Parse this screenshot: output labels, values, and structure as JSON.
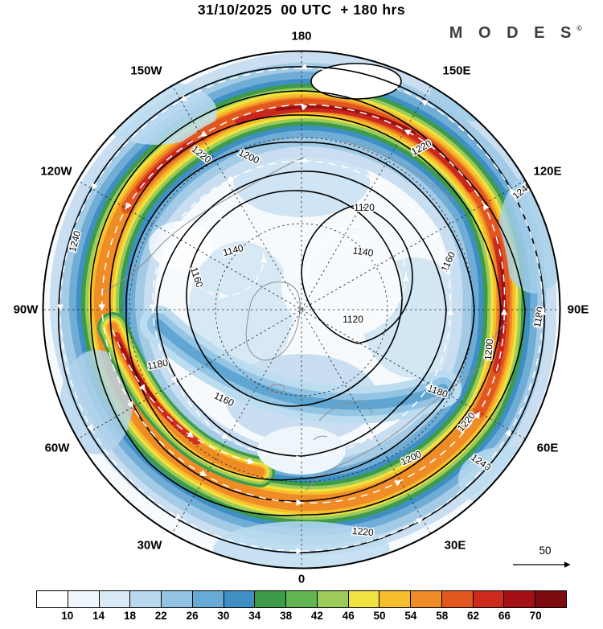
{
  "header": {
    "title": "31/10/2025  00 UTC  + 180 hrs",
    "brand": "M O D E S",
    "brand_mark": "©"
  },
  "map": {
    "lon_labels": [
      "180",
      "150W",
      "150E",
      "120W",
      "120E",
      "90W",
      "90E",
      "60W",
      "60E",
      "30W",
      "30E",
      "0"
    ],
    "contour_labels": [
      "1240",
      "1240",
      "1240",
      "1220",
      "1220",
      "1220",
      "1220",
      "1200",
      "1200",
      "1200",
      "1180",
      "1180",
      "1180",
      "1160",
      "1160",
      "1160",
      "1140",
      "1140",
      "1120",
      "1120"
    ],
    "wind_ref_label": "50"
  },
  "chart_data": {
    "type": "heatmap",
    "title": "31/10/2025 00 UTC + 180 hrs",
    "colorbar": {
      "ticks": [
        "10",
        "14",
        "18",
        "22",
        "26",
        "30",
        "34",
        "38",
        "42",
        "46",
        "50",
        "54",
        "58",
        "62",
        "66",
        "70"
      ],
      "colors": [
        "#ffffff",
        "#eef6fb",
        "#d8eaf6",
        "#b9d8ee",
        "#93c4e4",
        "#68aad6",
        "#3f8fc4",
        "#3d9b4a",
        "#63b554",
        "#9ccb5a",
        "#f0e23f",
        "#f6be2c",
        "#f08c26",
        "#e2571f",
        "#cc2a1d",
        "#a31015",
        "#7c0a0f"
      ]
    },
    "contour_levels": [
      "1120",
      "1140",
      "1160",
      "1180",
      "1200",
      "1220",
      "1240"
    ],
    "longitude_labels": [
      "180",
      "150W",
      "150E",
      "120W",
      "120E",
      "90W",
      "90E",
      "60W",
      "60E",
      "30W",
      "30E",
      "0"
    ],
    "wind_reference": "50"
  }
}
